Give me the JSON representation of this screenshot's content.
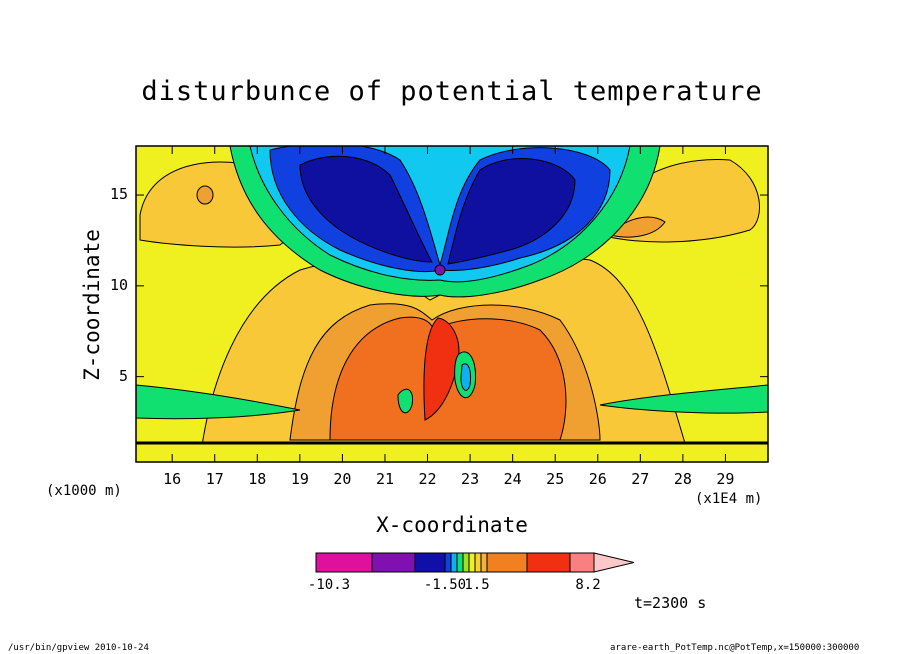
{
  "chart_data": {
    "type": "contour",
    "title": "disturbunce of potential temperature",
    "xlabel": "X-coordinate",
    "ylabel": "Z-coordinate",
    "x_unit_label": "(x1E4 m)",
    "y_unit_label": "(x1000 m)",
    "xlim": [
      15.15,
      30.0
    ],
    "ylim": [
      0.3,
      17.7
    ],
    "x_ticks": [
      16,
      17,
      18,
      19,
      20,
      21,
      22,
      23,
      24,
      25,
      26,
      27,
      28,
      29
    ],
    "y_ticks": [
      5,
      10,
      15
    ],
    "colorbar": {
      "labels": [
        {
          "text": "-10.3",
          "level": -10.3
        },
        {
          "text": "-1.50",
          "level": -1.5
        },
        {
          "text": "1.5",
          "level": 1.5
        },
        {
          "text": "8.2",
          "level": 8.2
        }
      ],
      "colors": [
        "#e0109e",
        "#8010b0",
        "#1010a8",
        "#1040e0",
        "#10b0f0",
        "#10e070",
        "#a0e020",
        "#f0f020",
        "#f8d030",
        "#f8b040",
        "#f08020",
        "#f03010",
        "#f88080",
        "#ffc8c8"
      ]
    },
    "time_label": "t=2300 s"
  },
  "footer": {
    "left": "/usr/bin/gpview   2010-10-24",
    "right": "arare-earth_PotTemp.nc@PotTemp,x=150000:300000"
  }
}
